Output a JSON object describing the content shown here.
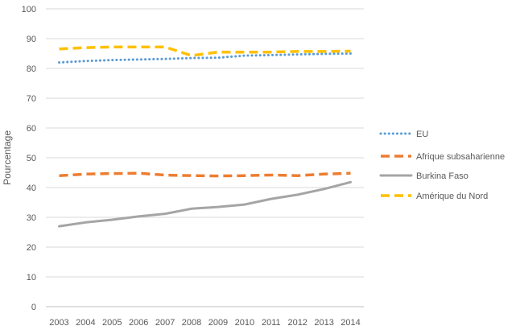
{
  "chart_data": {
    "type": "line",
    "title": "",
    "xlabel": "",
    "ylabel": "Pourcentage",
    "ylim": [
      0,
      100
    ],
    "yticks": [
      "0",
      "10",
      "20",
      "30",
      "40",
      "50",
      "60",
      "70",
      "80",
      "90",
      "100"
    ],
    "categories": [
      "2003",
      "2004",
      "2005",
      "2006",
      "2007",
      "2008",
      "2009",
      "2010",
      "2011",
      "2012",
      "2013",
      "2014"
    ],
    "grid": true,
    "legend_position": "right",
    "series": [
      {
        "name": "EU",
        "color": "#5B9BD5",
        "style": "dotted",
        "values": [
          82.0,
          82.5,
          82.8,
          83.0,
          83.2,
          83.5,
          83.6,
          84.3,
          84.5,
          84.7,
          84.9,
          85.0
        ]
      },
      {
        "name": "Afrique subsaharienne",
        "color": "#ED7D31",
        "style": "dashed",
        "values": [
          44.0,
          44.5,
          44.7,
          44.8,
          44.2,
          44.0,
          43.9,
          44.0,
          44.2,
          44.0,
          44.5,
          44.8
        ]
      },
      {
        "name": "Burkina Faso",
        "color": "#A5A5A5",
        "style": "solid",
        "values": [
          27.0,
          28.3,
          29.2,
          30.3,
          31.2,
          32.9,
          33.5,
          34.3,
          36.2,
          37.6,
          39.5,
          41.8
        ]
      },
      {
        "name": "Amérique du Nord",
        "color": "#FFC000",
        "style": "dashed",
        "values": [
          86.5,
          87.0,
          87.2,
          87.2,
          87.2,
          84.3,
          85.5,
          85.5,
          85.5,
          85.7,
          85.7,
          85.8
        ]
      }
    ]
  }
}
